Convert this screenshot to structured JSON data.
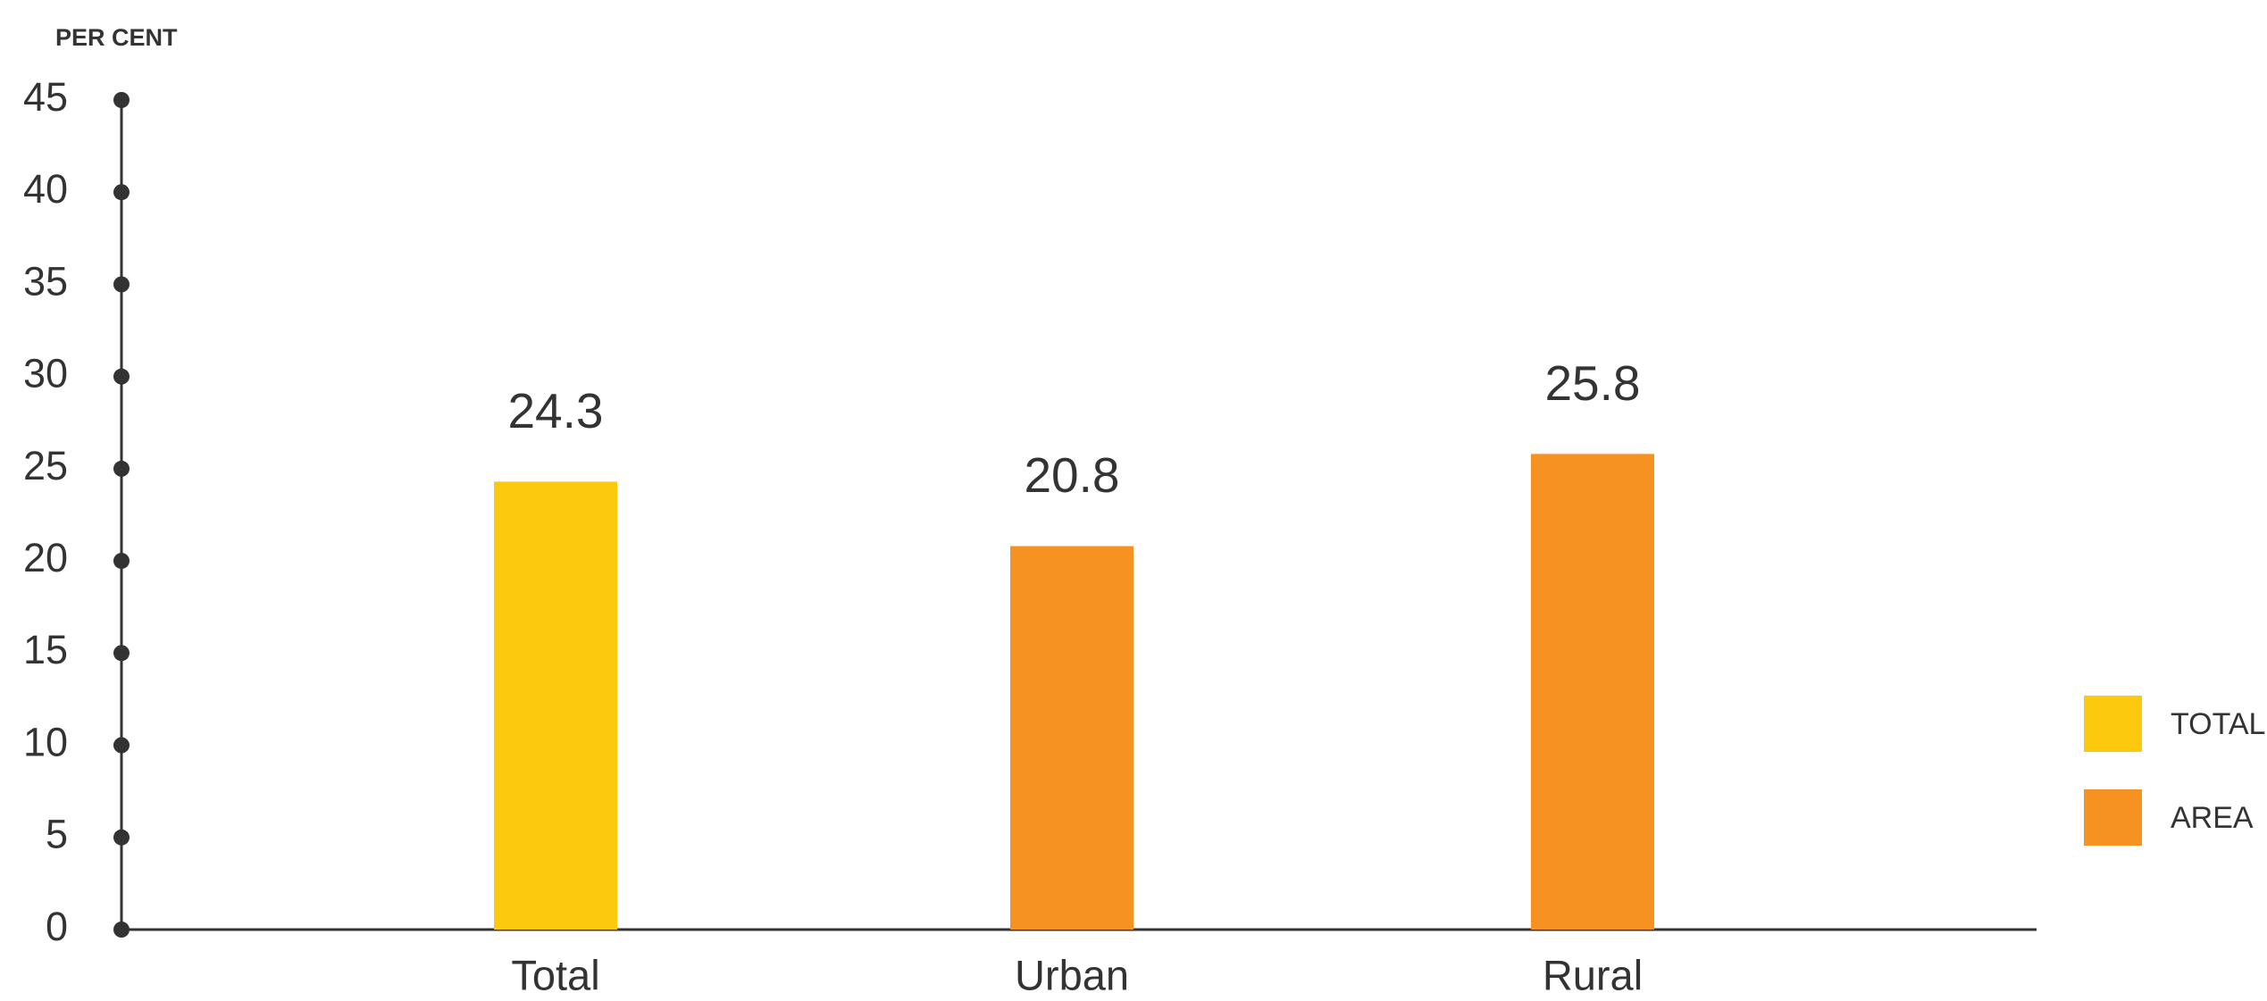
{
  "chart_data": {
    "type": "bar",
    "y_label": "PER CENT",
    "categories": [
      "Total",
      "Urban",
      "Rural"
    ],
    "series": [
      {
        "name": "TOTAL",
        "color": "#fdc90f",
        "values": [
          24.3,
          null,
          null
        ]
      },
      {
        "name": "AREA",
        "color": "#f59222",
        "values": [
          null,
          20.8,
          25.8
        ]
      }
    ],
    "ylim": [
      0,
      45
    ],
    "yticks": [
      0,
      5,
      10,
      15,
      20,
      25,
      30,
      35,
      40,
      45
    ],
    "legend": "right"
  }
}
